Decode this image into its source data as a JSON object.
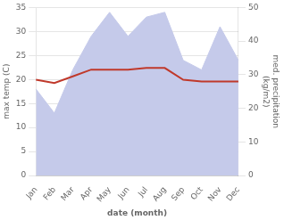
{
  "chart_data": {
    "type": "line",
    "xlabel": "date (month)",
    "ylabel": "max temp (C)",
    "y2label": "med. precipitation\n(kg/m2)",
    "categories": [
      "Jan",
      "Feb",
      "Mar",
      "Apr",
      "May",
      "Jun",
      "Jul",
      "Aug",
      "Sep",
      "Oct",
      "Nov",
      "Dec"
    ],
    "series": [
      {
        "type": "area",
        "color": "#c5caea",
        "values": [
          18,
          13,
          22,
          29,
          34,
          29,
          33,
          34,
          24,
          22,
          31,
          24
        ]
      },
      {
        "type": "line",
        "color": "#c0392b",
        "axis": "y2",
        "values": [
          28.5,
          27.5,
          29.5,
          31.5,
          31.5,
          31.5,
          32.0,
          32.0,
          28.5,
          28.0,
          28.0,
          28.0
        ]
      }
    ],
    "ylim": [
      0,
      35
    ],
    "yticks": [
      0,
      5,
      10,
      15,
      20,
      25,
      30,
      35
    ],
    "y2lim": [
      0,
      50
    ],
    "y2ticks": [
      0,
      10,
      20,
      30,
      40,
      50
    ],
    "grid": true
  }
}
